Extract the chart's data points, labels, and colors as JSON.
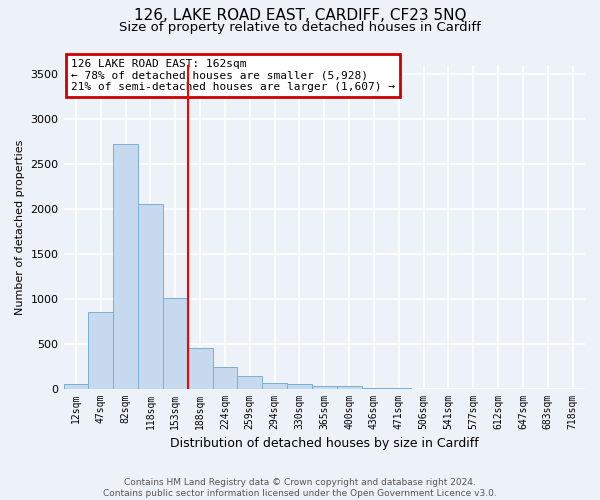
{
  "title1": "126, LAKE ROAD EAST, CARDIFF, CF23 5NQ",
  "title2": "Size of property relative to detached houses in Cardiff",
  "xlabel": "Distribution of detached houses by size in Cardiff",
  "ylabel": "Number of detached properties",
  "categories": [
    "12sqm",
    "47sqm",
    "82sqm",
    "118sqm",
    "153sqm",
    "188sqm",
    "224sqm",
    "259sqm",
    "294sqm",
    "330sqm",
    "365sqm",
    "400sqm",
    "436sqm",
    "471sqm",
    "506sqm",
    "541sqm",
    "577sqm",
    "612sqm",
    "647sqm",
    "683sqm",
    "718sqm"
  ],
  "values": [
    55,
    850,
    2720,
    2060,
    1010,
    455,
    235,
    145,
    65,
    50,
    30,
    25,
    10,
    5,
    0,
    0,
    0,
    0,
    0,
    0,
    0
  ],
  "bar_color": "#c6d9ee",
  "bar_edge_color": "#7aafd4",
  "redline_x": 4.5,
  "annotation_line1": "126 LAKE ROAD EAST: 162sqm",
  "annotation_line2": "← 78% of detached houses are smaller (5,928)",
  "annotation_line3": "21% of semi-detached houses are larger (1,607) →",
  "annotation_box_facecolor": "#ffffff",
  "annotation_box_edgecolor": "#cc0000",
  "ylim": [
    0,
    3600
  ],
  "yticks": [
    0,
    500,
    1000,
    1500,
    2000,
    2500,
    3000,
    3500
  ],
  "footer1": "Contains HM Land Registry data © Crown copyright and database right 2024.",
  "footer2": "Contains public sector information licensed under the Open Government Licence v3.0.",
  "background_color": "#edf2f8",
  "grid_color": "#ffffff",
  "title1_fontsize": 11,
  "title2_fontsize": 9.5,
  "ylabel_fontsize": 8,
  "xlabel_fontsize": 9,
  "tick_fontsize": 8,
  "xtick_fontsize": 7,
  "annotation_fontsize": 8
}
